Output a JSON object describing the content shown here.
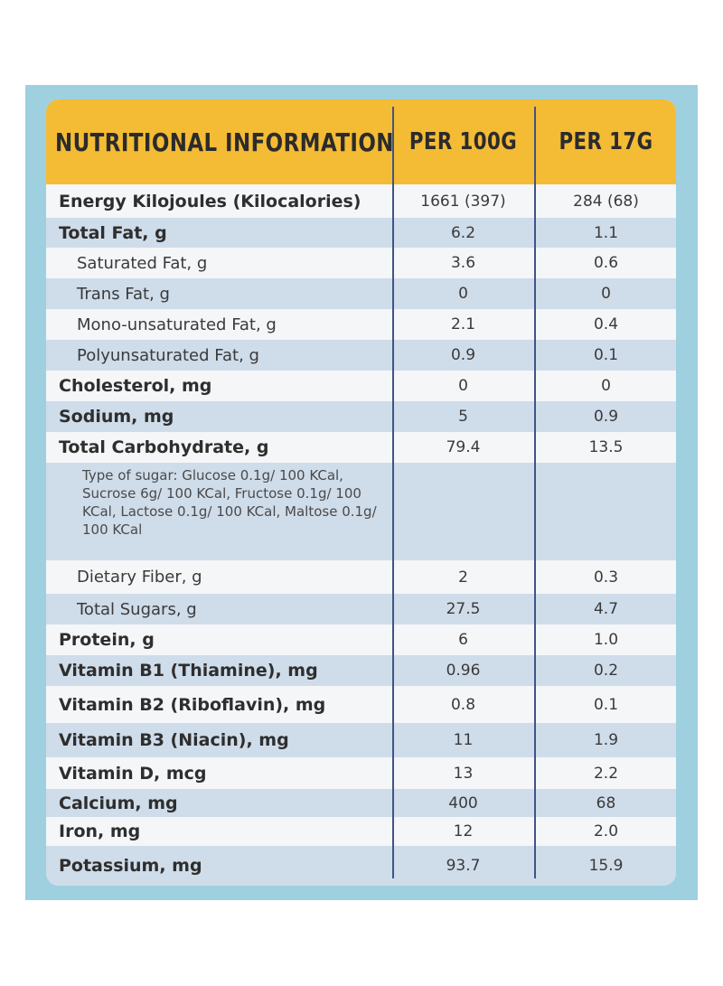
{
  "header": {
    "title": "NUTRITIONAL INFORMATION",
    "col1": "PER 100G",
    "col2": "PER 17G"
  },
  "rows": [
    {
      "label": "Energy Kilojoules (Kilocalories)",
      "per100": "1661 (397)",
      "per17": "284 (68)",
      "style": "bold",
      "height": 37
    },
    {
      "label": "Total Fat, g",
      "per100": "6.2",
      "per17": "1.1",
      "style": "bold",
      "height": 33
    },
    {
      "label": "Saturated Fat, g",
      "per100": "3.6",
      "per17": "0.6",
      "style": "sub",
      "height": 34
    },
    {
      "label": "Trans Fat, g",
      "per100": "0",
      "per17": "0",
      "style": "sub",
      "height": 34
    },
    {
      "label": "Mono-unsaturated Fat, g",
      "per100": "2.1",
      "per17": "0.4",
      "style": "sub",
      "height": 34
    },
    {
      "label": "Polyunsaturated Fat, g",
      "per100": "0.9",
      "per17": "0.1",
      "style": "sub",
      "height": 34
    },
    {
      "label": "Cholesterol, mg",
      "per100": "0",
      "per17": "0",
      "style": "bold",
      "height": 34
    },
    {
      "label": "Sodium, mg",
      "per100": "5",
      "per17": "0.9",
      "style": "bold",
      "height": 34
    },
    {
      "label": "Total Carbohydrate, g",
      "per100": "79.4",
      "per17": "13.5",
      "style": "bold",
      "height": 34
    },
    {
      "label": "Type of sugar: Glucose 0.1g/ 100 KCal, Sucrose 6g/ 100 KCal, Fructose 0.1g/ 100 KCal, Lactose 0.1g/ 100 KCal, Maltose 0.1g/ 100 KCal",
      "per100": "",
      "per17": "",
      "style": "note",
      "height": 108
    },
    {
      "label": "Dietary Fiber, g",
      "per100": "2",
      "per17": "0.3",
      "style": "sub",
      "height": 37
    },
    {
      "label": "Total Sugars, g",
      "per100": "27.5",
      "per17": "4.7",
      "style": "sub",
      "height": 34
    },
    {
      "label": "Protein, g",
      "per100": "6",
      "per17": "1.0",
      "style": "bold",
      "height": 34
    },
    {
      "label": "Vitamin B1 (Thiamine), mg",
      "per100": "0.96",
      "per17": "0.2",
      "style": "bold",
      "height": 34
    },
    {
      "label": "Vitamin B2 (Riboflavin), mg",
      "per100": "0.8",
      "per17": "0.1",
      "style": "bold",
      "height": 41
    },
    {
      "label": "Vitamin B3 (Niacin), mg",
      "per100": "11",
      "per17": "1.9",
      "style": "bold",
      "height": 38
    },
    {
      "label": "Vitamin D, mcg",
      "per100": "13",
      "per17": "2.2",
      "style": "bold",
      "height": 35
    },
    {
      "label": "Calcium, mg",
      "per100": "400",
      "per17": "68",
      "style": "bold",
      "height": 31
    },
    {
      "label": "Iron, mg",
      "per100": "12",
      "per17": "2.0",
      "style": "bold",
      "height": 32
    },
    {
      "label": "Potassium, mg",
      "per100": "93.7",
      "per17": "15.9",
      "style": "bold",
      "height": 44
    }
  ]
}
